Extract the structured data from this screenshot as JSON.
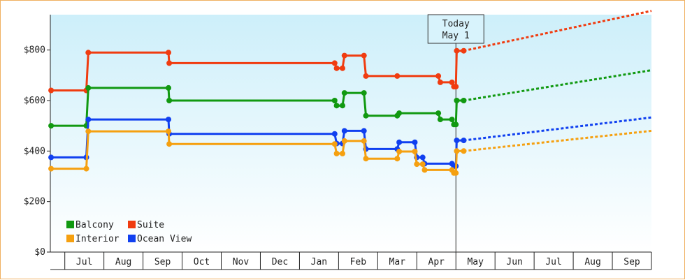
{
  "chart_data": {
    "type": "line",
    "step": true,
    "y_tick_labels": [
      "$0",
      "$200",
      "$400",
      "$600",
      "$800"
    ],
    "y_ticks": [
      0,
      200,
      400,
      600,
      800
    ],
    "ylim": [
      0,
      940
    ],
    "x_tick_labels": [
      "Jul",
      "Aug",
      "Sep",
      "Oct",
      "Nov",
      "Dec",
      "Jan",
      "Feb",
      "Mar",
      "Apr",
      "May",
      "Jun",
      "Jul",
      "Aug",
      "Sep"
    ],
    "x_months": [
      0,
      1,
      2,
      3,
      4,
      5,
      6,
      7,
      8,
      9,
      10,
      11,
      12,
      13,
      14
    ],
    "xlim": [
      -0.87,
      14.5
    ],
    "today_month": 9.5,
    "today_label_line1": "Today",
    "today_label_line2": "May 1",
    "legend_position": "bottom-left",
    "series": [
      {
        "name": "Suite",
        "color": "#f03c10",
        "points": [
          [
            -0.85,
            640
          ],
          [
            0.05,
            640
          ],
          [
            0.1,
            790
          ],
          [
            2.15,
            790
          ],
          [
            2.17,
            748
          ],
          [
            6.4,
            748
          ],
          [
            6.45,
            728
          ],
          [
            6.6,
            728
          ],
          [
            6.65,
            778
          ],
          [
            7.15,
            778
          ],
          [
            7.2,
            697
          ],
          [
            8.65,
            697
          ],
          [
            9.05,
            697
          ],
          [
            9.1,
            672
          ],
          [
            9.4,
            672
          ],
          [
            9.45,
            655
          ],
          [
            9.5,
            655
          ],
          [
            9.52,
            797
          ],
          [
            9.7,
            797
          ]
        ],
        "markers": [
          [
            -0.85,
            640
          ],
          [
            0.05,
            640
          ],
          [
            0.1,
            790
          ],
          [
            2.15,
            790
          ],
          [
            2.17,
            748
          ],
          [
            6.4,
            748
          ],
          [
            6.45,
            728
          ],
          [
            6.6,
            728
          ],
          [
            6.65,
            778
          ],
          [
            7.15,
            778
          ],
          [
            7.2,
            697
          ],
          [
            8.0,
            697
          ],
          [
            9.05,
            697
          ],
          [
            9.1,
            672
          ],
          [
            9.4,
            672
          ],
          [
            9.45,
            655
          ],
          [
            9.5,
            655
          ],
          [
            9.52,
            797
          ],
          [
            9.7,
            797
          ]
        ],
        "forecast": [
          [
            9.7,
            797
          ],
          [
            14.5,
            955
          ]
        ]
      },
      {
        "name": "Balcony",
        "color": "#119911",
        "points": [
          [
            -0.85,
            500
          ],
          [
            0.05,
            500
          ],
          [
            0.1,
            650
          ],
          [
            2.15,
            650
          ],
          [
            2.17,
            600
          ],
          [
            6.4,
            600
          ],
          [
            6.45,
            580
          ],
          [
            6.6,
            580
          ],
          [
            6.65,
            630
          ],
          [
            7.15,
            630
          ],
          [
            7.2,
            540
          ],
          [
            8.0,
            540
          ],
          [
            8.05,
            550
          ],
          [
            9.05,
            550
          ],
          [
            9.1,
            525
          ],
          [
            9.4,
            525
          ],
          [
            9.45,
            505
          ],
          [
            9.5,
            505
          ],
          [
            9.52,
            600
          ],
          [
            9.7,
            600
          ]
        ],
        "markers": [
          [
            -0.85,
            500
          ],
          [
            0.05,
            500
          ],
          [
            0.1,
            650
          ],
          [
            2.15,
            650
          ],
          [
            2.17,
            600
          ],
          [
            6.4,
            600
          ],
          [
            6.45,
            580
          ],
          [
            6.6,
            580
          ],
          [
            6.65,
            630
          ],
          [
            7.15,
            630
          ],
          [
            7.2,
            540
          ],
          [
            8.0,
            540
          ],
          [
            8.05,
            550
          ],
          [
            9.05,
            550
          ],
          [
            9.1,
            525
          ],
          [
            9.4,
            525
          ],
          [
            9.45,
            505
          ],
          [
            9.5,
            505
          ],
          [
            9.52,
            600
          ],
          [
            9.7,
            600
          ]
        ],
        "forecast": [
          [
            9.7,
            600
          ],
          [
            14.5,
            720
          ]
        ]
      },
      {
        "name": "Ocean View",
        "color": "#1040f0",
        "points": [
          [
            -0.85,
            375
          ],
          [
            0.05,
            375
          ],
          [
            0.1,
            525
          ],
          [
            2.15,
            525
          ],
          [
            2.17,
            468
          ],
          [
            6.4,
            468
          ],
          [
            6.45,
            430
          ],
          [
            6.6,
            430
          ],
          [
            6.65,
            480
          ],
          [
            7.15,
            480
          ],
          [
            7.2,
            408
          ],
          [
            8.0,
            408
          ],
          [
            8.05,
            435
          ],
          [
            8.45,
            435
          ],
          [
            8.5,
            375
          ],
          [
            8.65,
            375
          ],
          [
            8.7,
            350
          ],
          [
            9.4,
            350
          ],
          [
            9.45,
            340
          ],
          [
            9.5,
            340
          ],
          [
            9.52,
            442
          ],
          [
            9.7,
            442
          ]
        ],
        "markers": [
          [
            -0.85,
            375
          ],
          [
            0.05,
            375
          ],
          [
            0.1,
            525
          ],
          [
            2.15,
            525
          ],
          [
            2.17,
            468
          ],
          [
            6.4,
            468
          ],
          [
            6.45,
            430
          ],
          [
            6.6,
            430
          ],
          [
            6.65,
            480
          ],
          [
            7.15,
            480
          ],
          [
            7.2,
            408
          ],
          [
            8.0,
            408
          ],
          [
            8.05,
            435
          ],
          [
            8.45,
            435
          ],
          [
            8.5,
            375
          ],
          [
            8.65,
            375
          ],
          [
            8.7,
            350
          ],
          [
            9.4,
            350
          ],
          [
            9.45,
            340
          ],
          [
            9.5,
            340
          ],
          [
            9.52,
            442
          ],
          [
            9.7,
            442
          ]
        ],
        "forecast": [
          [
            9.7,
            442
          ],
          [
            14.5,
            533
          ]
        ]
      },
      {
        "name": "Interior",
        "color": "#f5a010",
        "points": [
          [
            -0.85,
            330
          ],
          [
            0.05,
            330
          ],
          [
            0.1,
            478
          ],
          [
            2.15,
            478
          ],
          [
            2.17,
            428
          ],
          [
            6.4,
            428
          ],
          [
            6.45,
            390
          ],
          [
            6.6,
            390
          ],
          [
            6.65,
            440
          ],
          [
            7.15,
            440
          ],
          [
            7.2,
            370
          ],
          [
            8.0,
            370
          ],
          [
            8.05,
            398
          ],
          [
            8.45,
            398
          ],
          [
            8.5,
            348
          ],
          [
            8.65,
            348
          ],
          [
            8.7,
            325
          ],
          [
            9.4,
            325
          ],
          [
            9.45,
            313
          ],
          [
            9.5,
            313
          ],
          [
            9.52,
            400
          ],
          [
            9.7,
            400
          ]
        ],
        "markers": [
          [
            -0.85,
            330
          ],
          [
            0.05,
            330
          ],
          [
            0.1,
            478
          ],
          [
            2.15,
            478
          ],
          [
            2.17,
            428
          ],
          [
            6.4,
            428
          ],
          [
            6.45,
            390
          ],
          [
            6.6,
            390
          ],
          [
            6.65,
            440
          ],
          [
            7.15,
            440
          ],
          [
            7.2,
            370
          ],
          [
            8.0,
            370
          ],
          [
            8.05,
            398
          ],
          [
            8.45,
            398
          ],
          [
            8.5,
            348
          ],
          [
            8.65,
            348
          ],
          [
            8.7,
            325
          ],
          [
            9.4,
            325
          ],
          [
            9.45,
            313
          ],
          [
            9.5,
            313
          ],
          [
            9.52,
            400
          ],
          [
            9.7,
            400
          ]
        ],
        "forecast": [
          [
            9.7,
            400
          ],
          [
            14.5,
            480
          ]
        ]
      }
    ],
    "legend": [
      {
        "name": "Balcony",
        "color": "#119911"
      },
      {
        "name": "Suite",
        "color": "#f03c10"
      },
      {
        "name": "Interior",
        "color": "#f5a010"
      },
      {
        "name": "Ocean View",
        "color": "#1040f0"
      }
    ]
  }
}
